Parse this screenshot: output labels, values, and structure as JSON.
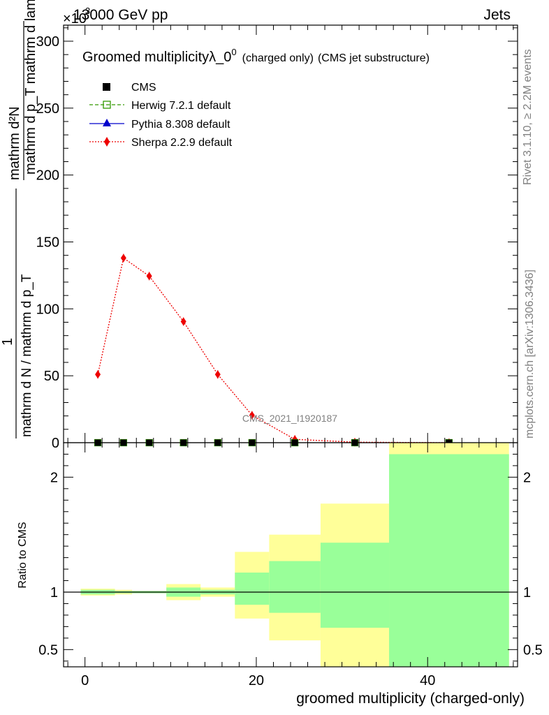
{
  "header": {
    "beam": "13000 GeV pp",
    "category": "Jets",
    "scale_exponent": "3",
    "scale_base": "×10"
  },
  "side_labels": {
    "rivet": "Rivet 3.1.10, ≥ 2.2M events",
    "mcplots": "mcplots.cern.ch [arXiv:1306.3436]"
  },
  "watermark": "CMS_2021_I1920187",
  "colors": {
    "cms": "#000000",
    "herwig": "#339900",
    "pythia": "#0000cc",
    "sherpa": "#ee0000",
    "band_inner": "#99ff99",
    "band_outer": "#ffff99"
  },
  "legend": {
    "cms": "CMS",
    "herwig": "Herwig 7.2.1 default",
    "pythia": "Pythia 8.308 default",
    "sherpa": "Sherpa 2.2.9 default"
  },
  "chart_data": {
    "type": "line",
    "title_main": "Groomed multiplicityλ_0",
    "title_sup": "0",
    "title_small": "(charged only)",
    "title_tail": "(CMS jet substructure)",
    "ylabel_numer": "mathrm d²N",
    "ylabel_denom": "mathrm d p_T mathrm d lambda",
    "ylabel_prefix": "1",
    "ylabel_prefix_den": "mathrm d N / mathrm d p_T",
    "xlabel": "groomed multiplicity (charged-only)",
    "ratio_ylabel": "Ratio to CMS",
    "xlim": [
      -2.5,
      50.5
    ],
    "main_ylim": [
      0,
      312
    ],
    "main_yticks": [
      "0",
      "50",
      "100",
      "150",
      "200",
      "250",
      "300"
    ],
    "main_ytick_values": [
      0,
      50,
      100,
      150,
      200,
      250,
      300
    ],
    "ratio_ylim": [
      0.35,
      2.3
    ],
    "ratio_yticks": [
      "0.5",
      "1",
      "2"
    ],
    "ratio_ytick_values": [
      0.5,
      1,
      2
    ],
    "xticks": [
      "0",
      "20",
      "40"
    ],
    "xtick_values": [
      0,
      20,
      40
    ],
    "bins": [
      {
        "lo": -0.5,
        "hi": 3.5
      },
      {
        "lo": 3.5,
        "hi": 5.5
      },
      {
        "lo": 5.5,
        "hi": 9.5
      },
      {
        "lo": 9.5,
        "hi": 13.5
      },
      {
        "lo": 13.5,
        "hi": 17.5
      },
      {
        "lo": 17.5,
        "hi": 21.5
      },
      {
        "lo": 21.5,
        "hi": 27.5
      },
      {
        "lo": 27.5,
        "hi": 35.5
      },
      {
        "lo": 35.5,
        "hi": 49.5
      }
    ],
    "series": [
      {
        "name": "CMS",
        "x": [
          1.5,
          4.5,
          7.5,
          11.5,
          15.5,
          19.5,
          24.5,
          31.5,
          42.5
        ],
        "y": [
          0,
          0,
          0,
          0,
          0,
          0,
          0,
          0,
          0
        ]
      },
      {
        "name": "Herwig 7.2.1 default",
        "x": [
          1.5,
          4.5,
          7.5,
          11.5,
          15.5,
          19.5,
          24.5,
          31.5,
          42.5
        ],
        "y": [
          0,
          0,
          0,
          0,
          0,
          0,
          0,
          0,
          0
        ]
      },
      {
        "name": "Pythia 8.308 default",
        "x": [
          1.5,
          4.5,
          7.5,
          11.5,
          15.5,
          19.5,
          24.5,
          31.5,
          42.5
        ],
        "y": [
          0,
          0,
          0,
          0,
          0,
          0,
          0,
          0,
          0
        ]
      },
      {
        "name": "Sherpa 2.2.9 default",
        "x": [
          1.5,
          4.5,
          7.5,
          11.5,
          15.5,
          19.5,
          24.5,
          31.5,
          42.5
        ],
        "y": [
          51,
          138,
          124.5,
          90.5,
          51,
          20.5,
          2.5,
          0.4,
          0.02
        ]
      }
    ],
    "ratio_bands": {
      "inner_lo": [
        0.98,
        0.99,
        0.99,
        0.96,
        0.98,
        0.89,
        0.82,
        0.69,
        0.0
      ],
      "inner_hi": [
        1.02,
        1.01,
        1.01,
        1.04,
        1.02,
        1.17,
        1.27,
        1.43,
        2.2
      ],
      "outer_lo": [
        0.97,
        0.98,
        0.99,
        0.93,
        0.96,
        0.77,
        0.58,
        0.0,
        0.0
      ],
      "outer_hi": [
        1.03,
        1.02,
        1.01,
        1.07,
        1.04,
        1.35,
        1.5,
        1.77,
        2.4
      ]
    }
  }
}
